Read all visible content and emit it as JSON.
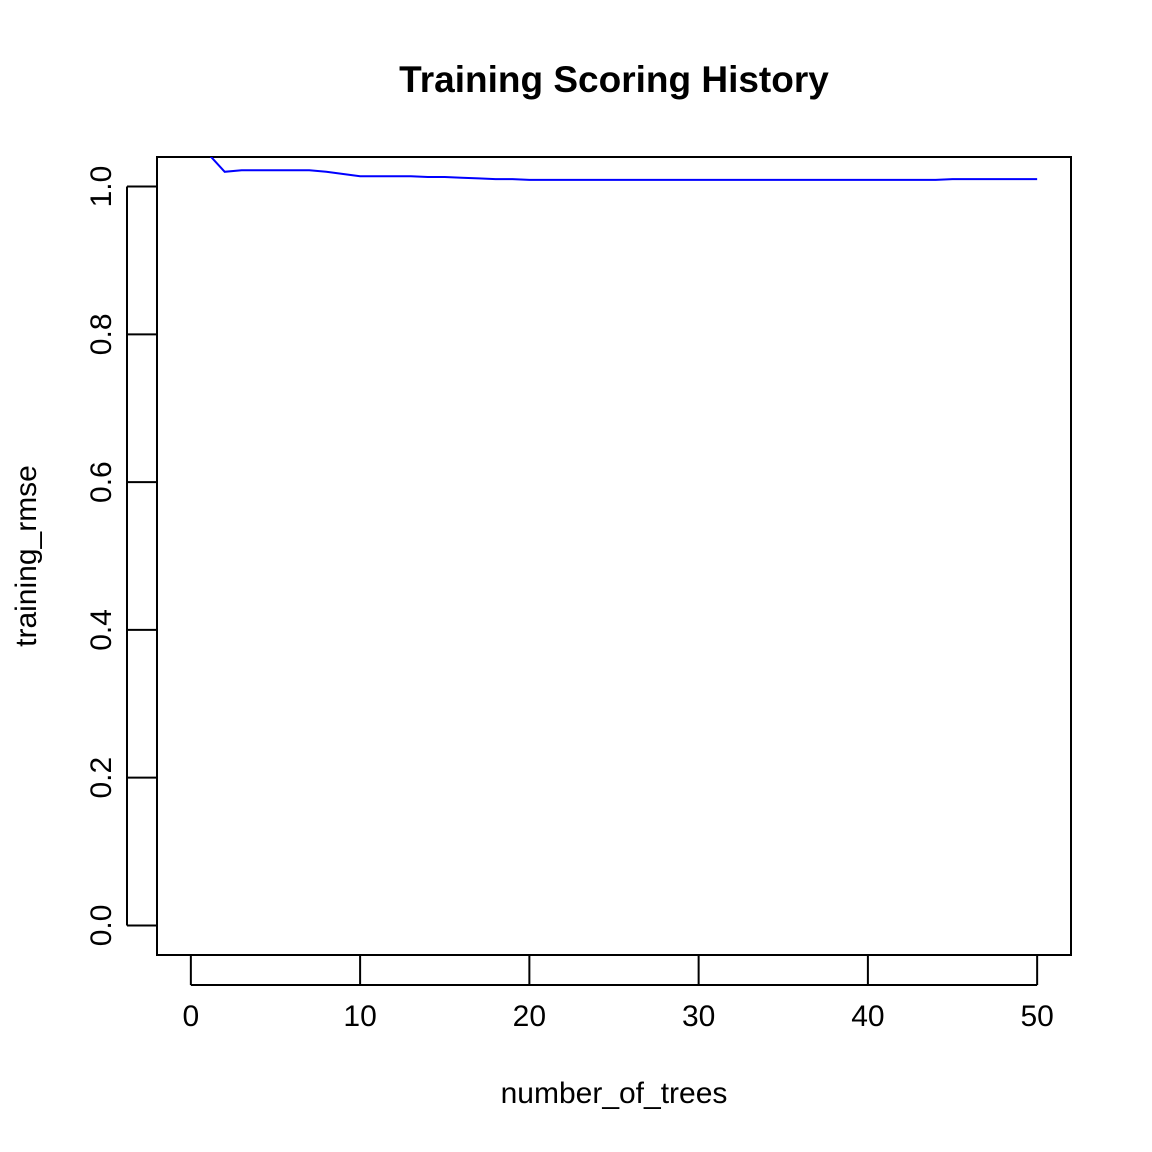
{
  "chart_data": {
    "type": "line",
    "title": "Training Scoring History",
    "xlabel": "number_of_trees",
    "ylabel": "training_rmse",
    "xlim": [
      -2,
      52
    ],
    "ylim": [
      -0.04,
      1.04
    ],
    "x_ticks": [
      0,
      10,
      20,
      30,
      40,
      50
    ],
    "x_tick_labels": [
      "0",
      "10",
      "20",
      "30",
      "40",
      "50"
    ],
    "y_ticks": [
      0.0,
      0.2,
      0.4,
      0.6,
      0.8,
      1.0
    ],
    "y_tick_labels": [
      "0.0",
      "0.2",
      "0.4",
      "0.6",
      "0.8",
      "1.0"
    ],
    "grid": false,
    "legend": "none",
    "series": [
      {
        "color": "#0000ff",
        "x": [
          0,
          1,
          2,
          3,
          4,
          5,
          6,
          7,
          8,
          9,
          10,
          11,
          12,
          13,
          14,
          15,
          16,
          17,
          18,
          19,
          20,
          21,
          22,
          23,
          24,
          25,
          26,
          27,
          28,
          29,
          30,
          31,
          32,
          33,
          34,
          35,
          36,
          37,
          38,
          39,
          40,
          41,
          42,
          43,
          44,
          45,
          46,
          47,
          48,
          49,
          50
        ],
        "y": [
          1.087,
          1.045,
          1.02,
          1.022,
          1.022,
          1.022,
          1.022,
          1.022,
          1.02,
          1.017,
          1.014,
          1.014,
          1.014,
          1.014,
          1.013,
          1.013,
          1.012,
          1.011,
          1.01,
          1.01,
          1.009,
          1.009,
          1.009,
          1.009,
          1.009,
          1.009,
          1.009,
          1.009,
          1.009,
          1.009,
          1.009,
          1.009,
          1.009,
          1.009,
          1.009,
          1.009,
          1.009,
          1.009,
          1.009,
          1.009,
          1.009,
          1.009,
          1.009,
          1.009,
          1.009,
          1.01,
          1.01,
          1.01,
          1.01,
          1.01,
          1.01
        ]
      }
    ]
  }
}
